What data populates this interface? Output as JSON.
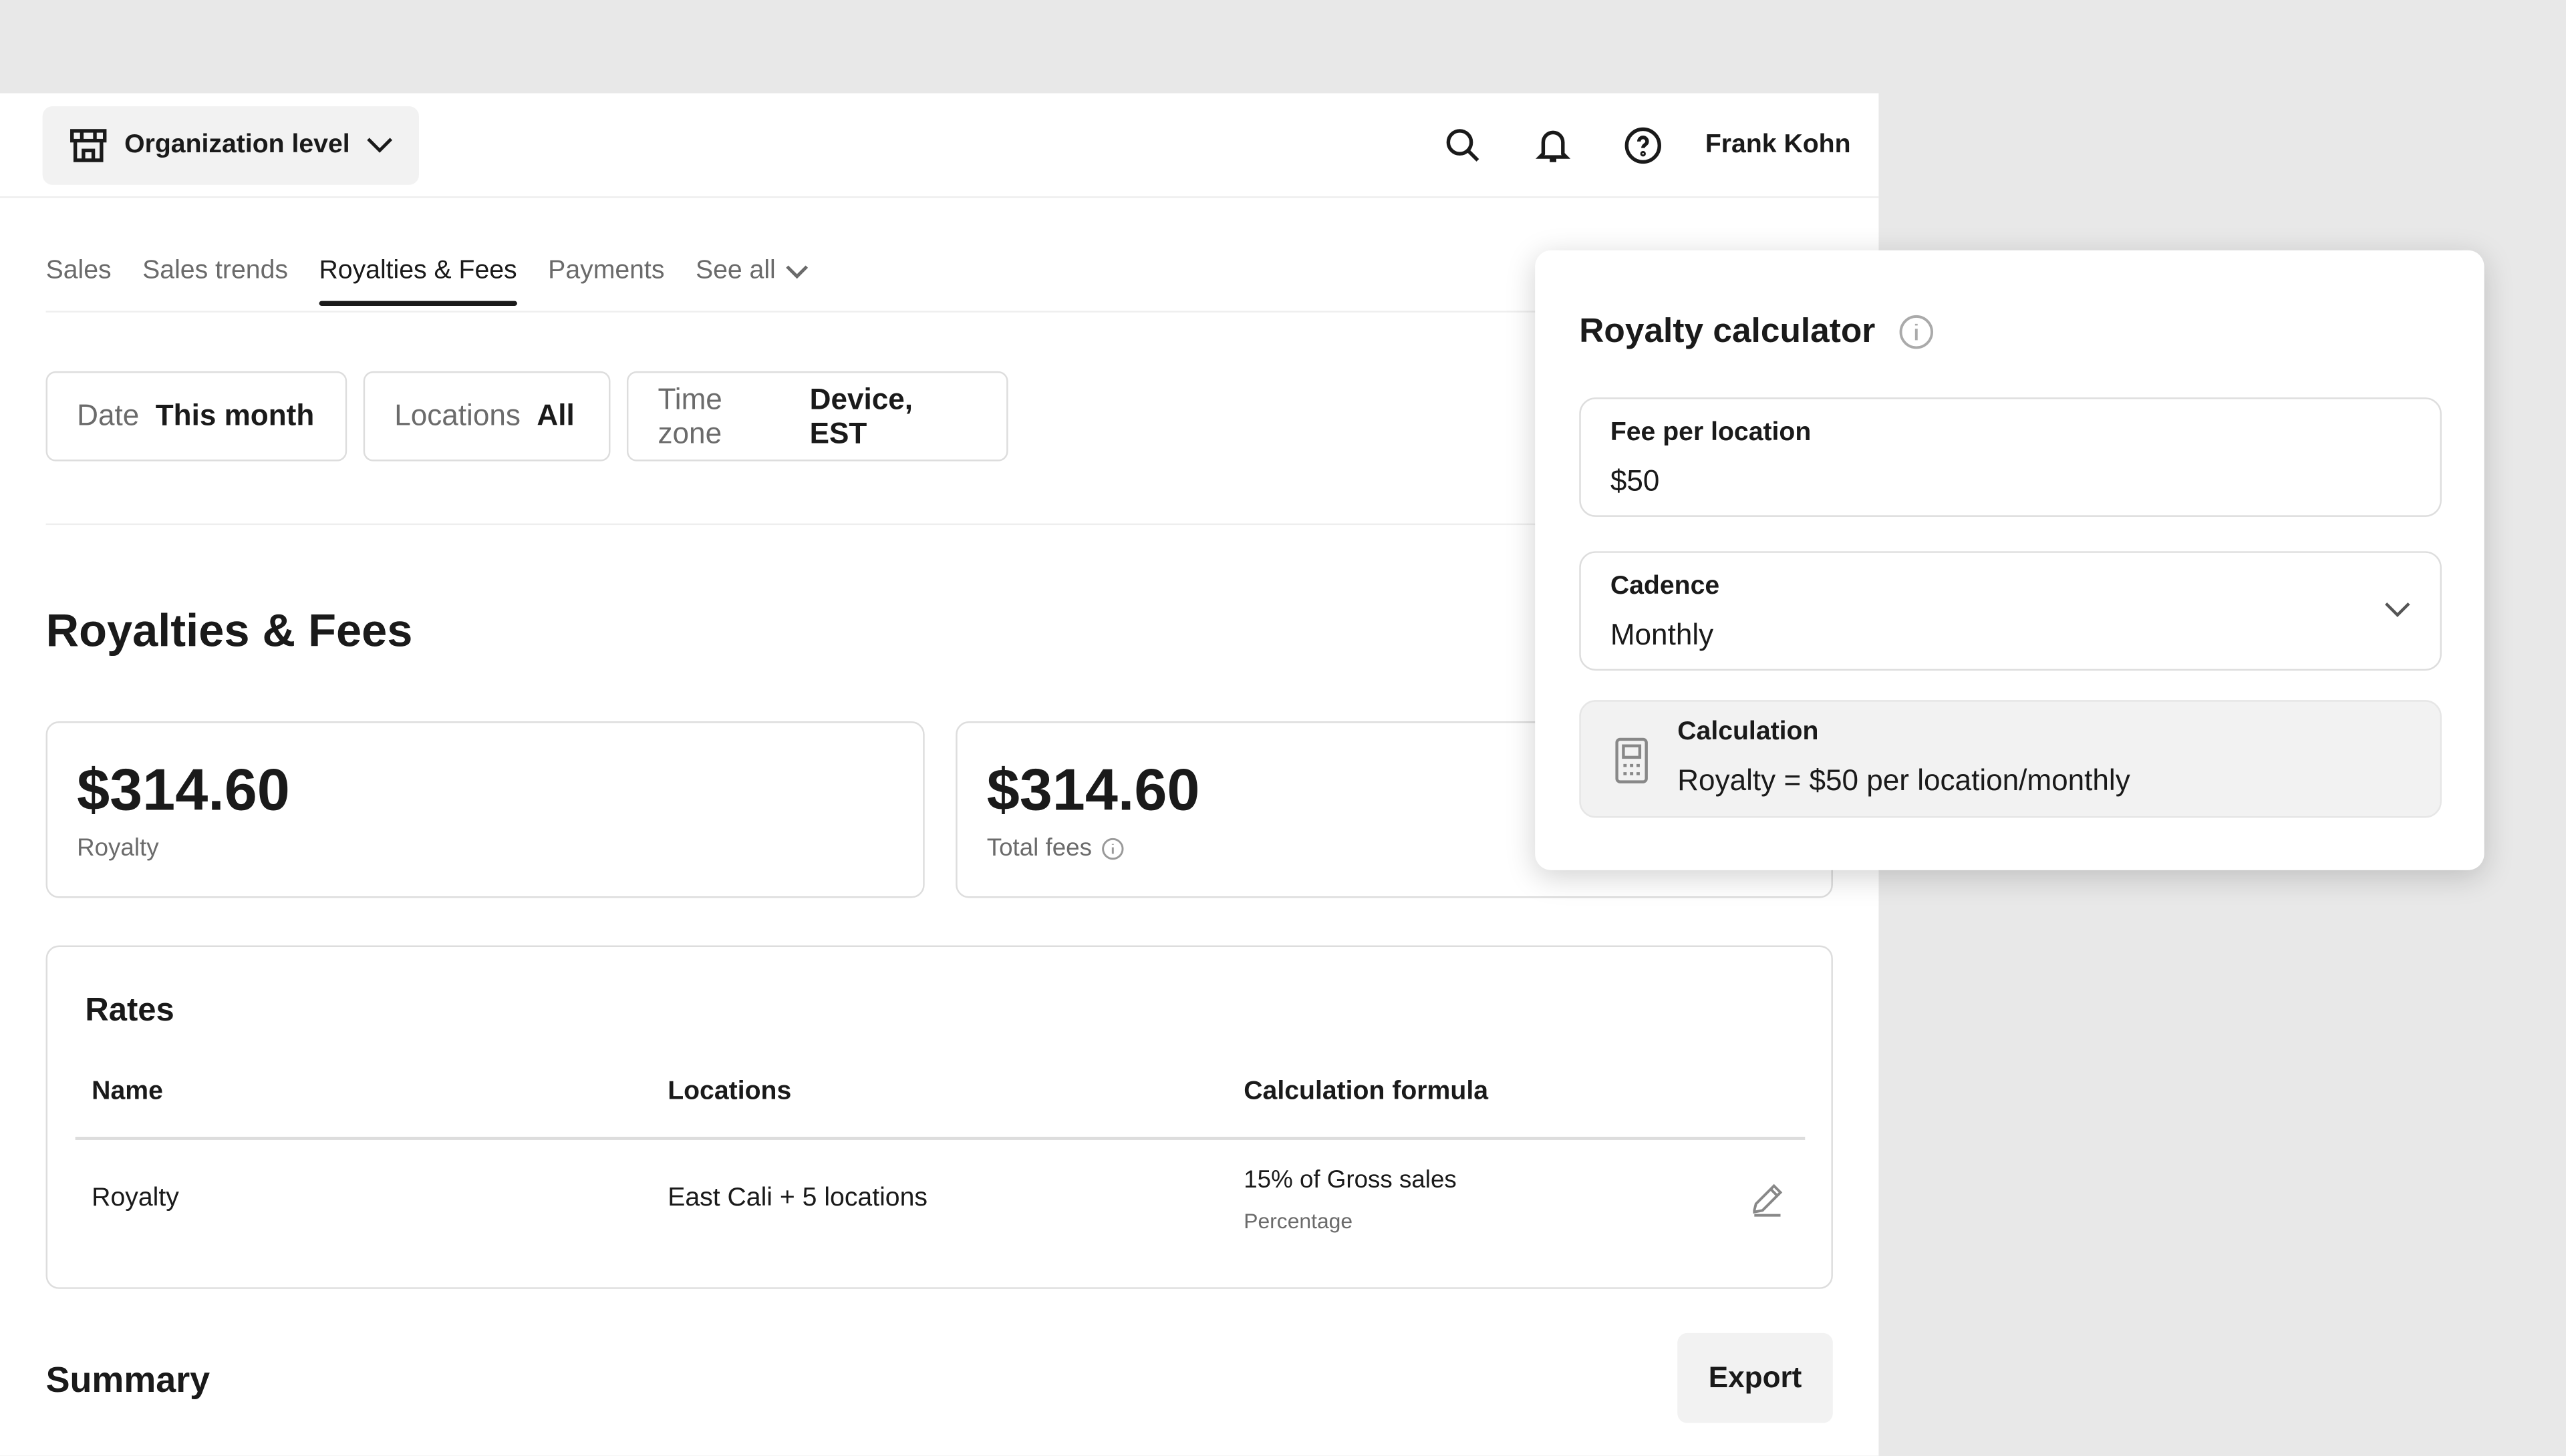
{
  "header": {
    "org_selector": "Organization level",
    "user_name": "Frank Kohn",
    "icons": [
      "storefront-icon",
      "search-icon",
      "bell-icon",
      "help-icon"
    ]
  },
  "tabs": [
    {
      "label": "Sales"
    },
    {
      "label": "Sales trends"
    },
    {
      "label": "Royalties & Fees",
      "active": true
    },
    {
      "label": "Payments"
    },
    {
      "label": "See all"
    }
  ],
  "filters": [
    {
      "label": "Date",
      "value": "This month"
    },
    {
      "label": "Locations",
      "value": "All"
    },
    {
      "label": "Time zone",
      "value": "Device, EST"
    }
  ],
  "page_title": "Royalties & Fees",
  "metrics": [
    {
      "value": "$314.60",
      "label": "Royalty"
    },
    {
      "value": "$314.60",
      "label": "Total fees"
    }
  ],
  "rates": {
    "title": "Rates",
    "columns": [
      "Name",
      "Locations",
      "Calculation formula"
    ],
    "rows": [
      {
        "name": "Royalty",
        "locations": "East Cali + 5 locations",
        "formula": "15% of Gross sales",
        "formula_type": "Percentage"
      }
    ]
  },
  "summary": {
    "title": "Summary",
    "export_label": "Export"
  },
  "calculator": {
    "title": "Royalty calculator",
    "fee_label": "Fee per location",
    "fee_value": "$50",
    "cadence_label": "Cadence",
    "cadence_value": "Monthly",
    "calc_label": "Calculation",
    "calc_text": "Royalty = $50 per location/monthly"
  }
}
